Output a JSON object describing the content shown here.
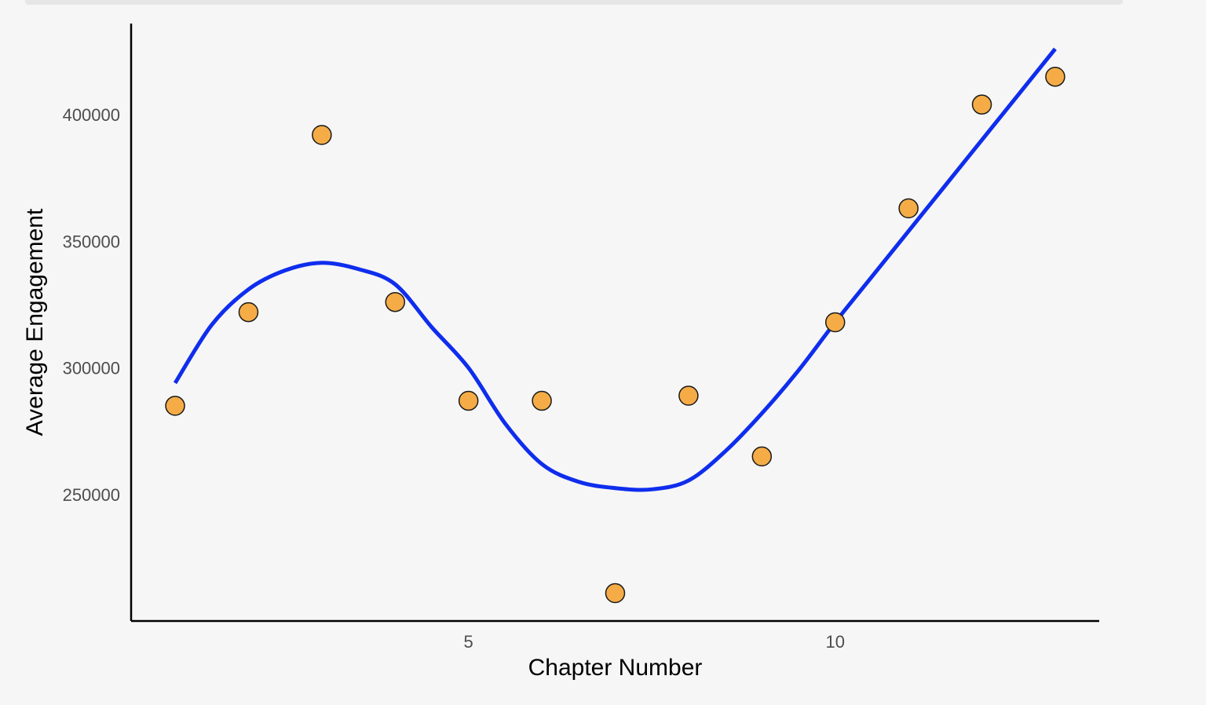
{
  "chart_data": {
    "type": "scatter",
    "title": "",
    "xlabel": "Chapter Number",
    "ylabel": "Average Engagement",
    "xlim": [
      0.4,
      13.6
    ],
    "ylim": [
      200000,
      436000
    ],
    "x_ticks": [
      5,
      10
    ],
    "y_ticks": [
      250000,
      300000,
      350000,
      400000
    ],
    "grid": false,
    "legend": "none",
    "series": [
      {
        "kind": "points",
        "color": "#f5ac47",
        "stroke": "#1a1a1a",
        "x": [
          1,
          2,
          3,
          4,
          5,
          6,
          7,
          8,
          9,
          10,
          11,
          12,
          13
        ],
        "y": [
          285000,
          322000,
          392000,
          326000,
          287000,
          287000,
          211000,
          289000,
          265000,
          318000,
          363000,
          404000,
          415000
        ]
      },
      {
        "kind": "smooth",
        "color": "#0f2ded",
        "x": [
          1,
          1.5,
          2,
          2.5,
          3,
          3.5,
          4,
          4.5,
          5,
          5.5,
          6,
          6.5,
          7,
          7.5,
          8,
          8.5,
          9,
          9.5,
          10,
          10.5,
          11,
          11.5,
          12,
          12.5,
          13
        ],
        "y": [
          294000,
          317000,
          331000,
          338500,
          341500,
          339000,
          333000,
          316000,
          300000,
          278000,
          262000,
          255000,
          252500,
          252000,
          255500,
          267000,
          282000,
          299000,
          318000,
          336000,
          354000,
          372000,
          390000,
          408000,
          426000
        ]
      }
    ]
  }
}
